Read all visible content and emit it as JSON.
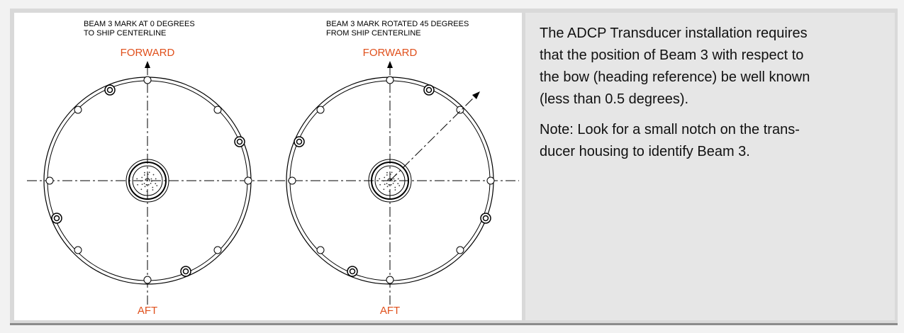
{
  "diagrams": [
    {
      "caption": [
        "BEAM 3 MARK AT 0 DEGREES",
        "TO SHIP CENTERLINE"
      ],
      "top_label": "FORWARD",
      "bottom_label": "AFT"
    },
    {
      "caption": [
        "BEAM 3 MARK ROTATED 45 DEGREES",
        "FROM SHIP CENTERLINE"
      ],
      "top_label": "FORWARD",
      "bottom_label": "AFT"
    }
  ],
  "text_panel": {
    "paragraphs": [
      [
        "The ADCP Transducer installation requires",
        "that the position of Beam 3 with respect to",
        "the bow (heading reference) be well known",
        "(less than 0.5 degrees)."
      ],
      [
        "Note:  Look for a small notch on the trans-",
        "ducer housing to identify Beam 3."
      ]
    ]
  }
}
